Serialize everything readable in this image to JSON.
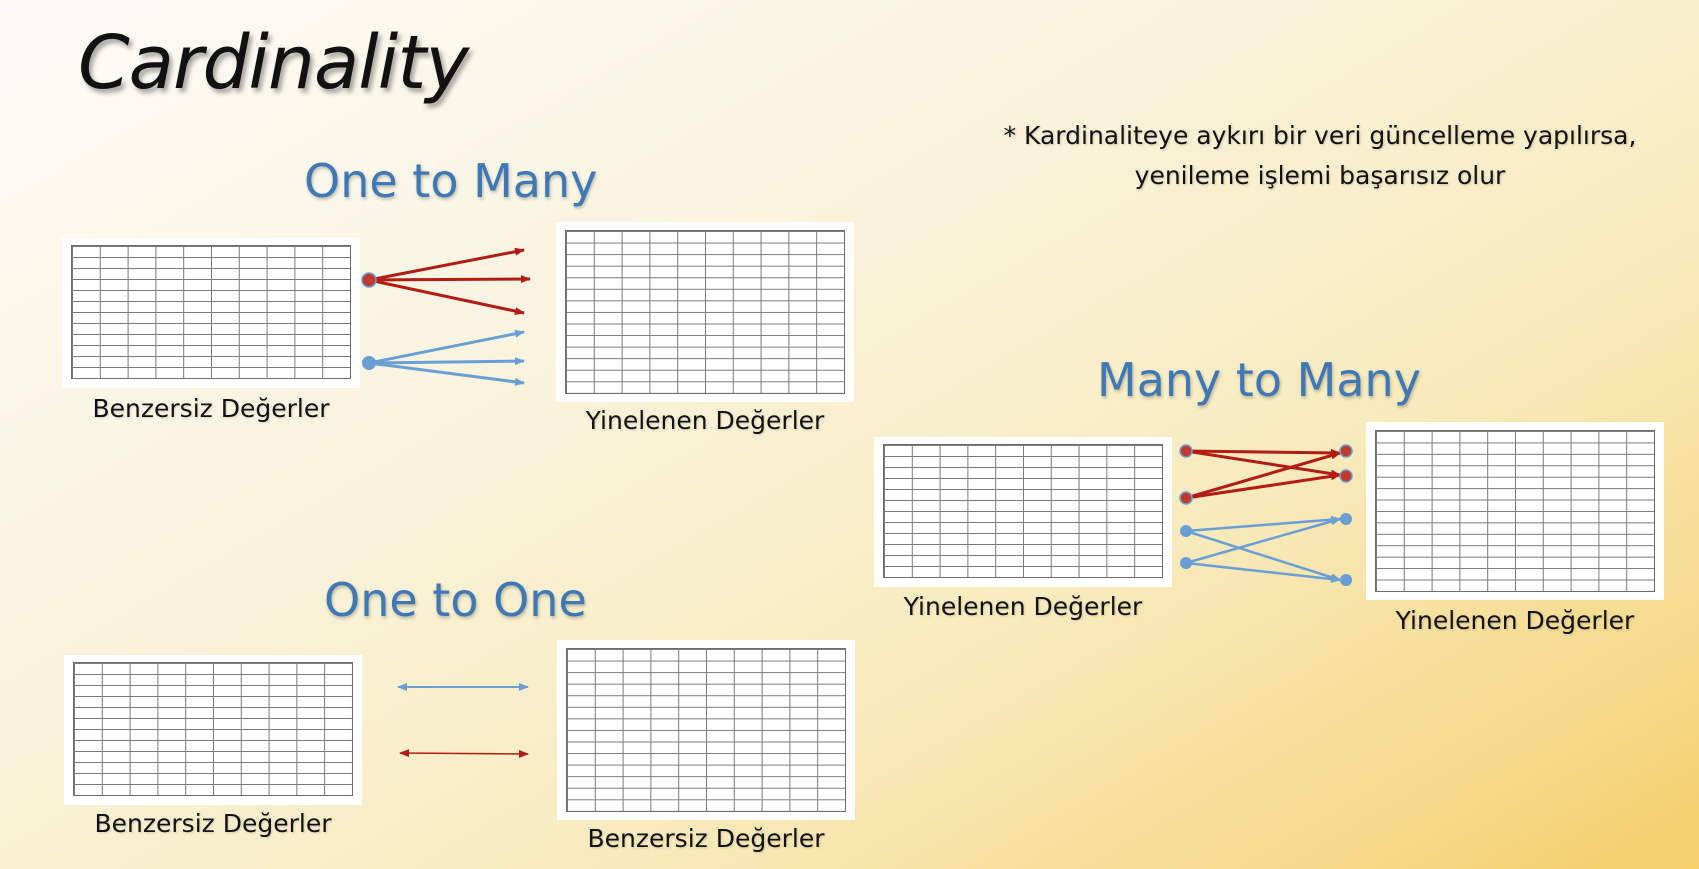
{
  "slide": {
    "title": "Cardinality",
    "note_line1": "* Kardinaliteye aykırı bir veri güncelleme yapılırsa,",
    "note_line2": "yenileme işlemi başarısız olur"
  },
  "one_to_many": {
    "heading": "One to Many",
    "left_caption": "Benzersiz Değerler",
    "right_caption": "Yinelenen Değerler"
  },
  "one_to_one": {
    "heading": "One to One",
    "left_caption": "Benzersiz Değerler",
    "right_caption": "Benzersiz Değerler"
  },
  "many_to_many": {
    "heading": "Many to Many",
    "left_caption": "Yinelenen Değerler",
    "right_caption": "Yinelenen Değerler"
  },
  "colors": {
    "heading": "#3f79b5",
    "red_arrow": "#b31b14",
    "blue_arrow": "#6a9fd6",
    "table_grid": "#6e6e6e"
  },
  "icons": {
    "table": "table-grid-icon",
    "arrow": "arrow-right-icon"
  }
}
